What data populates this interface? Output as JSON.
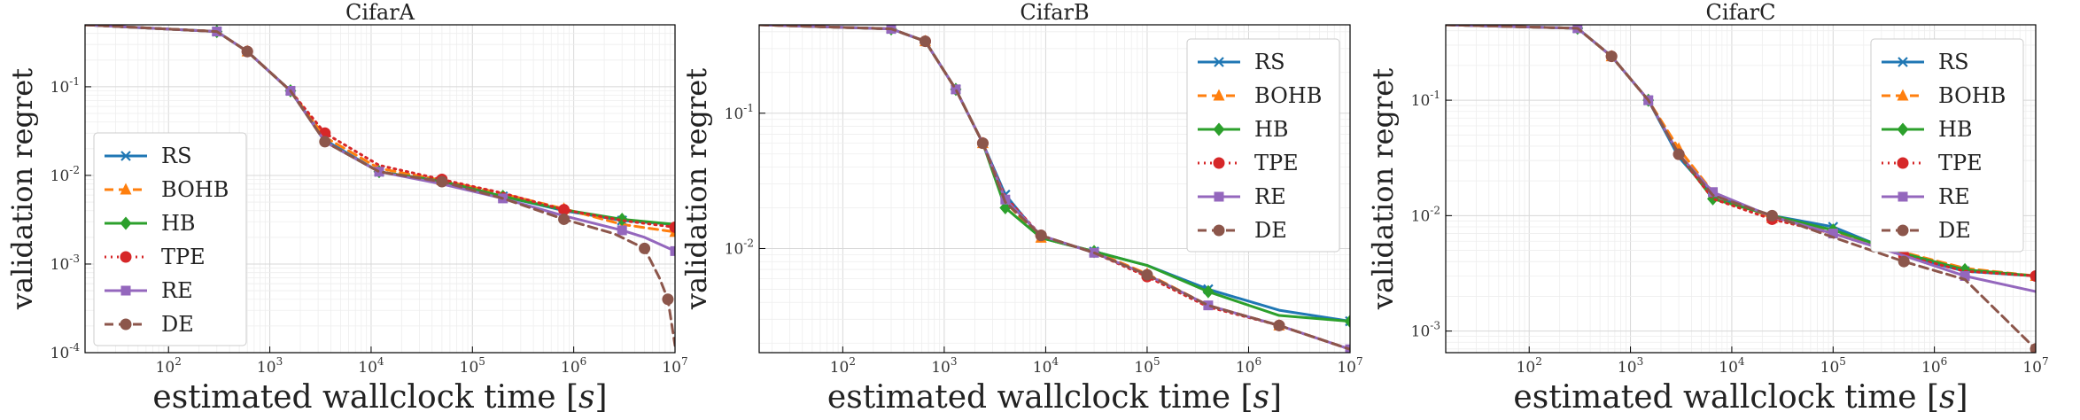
{
  "chart_data": [
    {
      "type": "line",
      "title": "CifarA",
      "xlabel": "estimated wallclock time [s]",
      "ylabel": "validation regret",
      "x_scale": "log",
      "y_scale": "log",
      "xlim": [
        15,
        10000000
      ],
      "ylim": [
        0.0001,
        0.5
      ],
      "x_tick_labels": [
        "10^2",
        "10^3",
        "10^4",
        "10^5",
        "10^6",
        "10^7"
      ],
      "y_tick_labels": [
        "10^-4",
        "10^-3",
        "10^-2",
        "10^-1"
      ],
      "legend_position": "lower-left",
      "grid": true,
      "series": [
        {
          "name": "RS",
          "color": "#1f77b4",
          "dash": "solid",
          "marker": "x",
          "x": [
            15,
            300,
            600,
            1600,
            3500,
            12000,
            50000,
            200000,
            800000,
            3000000,
            10000000
          ],
          "y": [
            0.5,
            0.42,
            0.25,
            0.09,
            0.025,
            0.011,
            0.0085,
            0.0058,
            0.004,
            0.0031,
            0.0028
          ]
        },
        {
          "name": "BOHB",
          "color": "#ff7f0e",
          "dash": "dashed",
          "marker": "^",
          "x": [
            15,
            300,
            600,
            1600,
            3500,
            12000,
            50000,
            200000,
            800000,
            3000000,
            10000000
          ],
          "y": [
            0.5,
            0.42,
            0.25,
            0.09,
            0.027,
            0.012,
            0.0088,
            0.0062,
            0.0042,
            0.0028,
            0.0023
          ]
        },
        {
          "name": "HB",
          "color": "#2ca02c",
          "dash": "solid",
          "marker": "D",
          "x": [
            15,
            300,
            600,
            1600,
            3500,
            12000,
            50000,
            200000,
            800000,
            3000000,
            10000000
          ],
          "y": [
            0.5,
            0.42,
            0.25,
            0.09,
            0.024,
            0.011,
            0.0086,
            0.0058,
            0.0041,
            0.0032,
            0.0028
          ]
        },
        {
          "name": "TPE",
          "color": "#d62728",
          "dash": "dotted",
          "marker": "o",
          "x": [
            15,
            300,
            600,
            1600,
            3500,
            12000,
            50000,
            200000,
            800000,
            3000000,
            10000000
          ],
          "y": [
            0.5,
            0.42,
            0.25,
            0.09,
            0.03,
            0.013,
            0.009,
            0.0063,
            0.0041,
            0.0031,
            0.0026
          ]
        },
        {
          "name": "RE",
          "color": "#9467bd",
          "dash": "solid",
          "marker": "s",
          "x": [
            15,
            300,
            600,
            1600,
            3500,
            12000,
            50000,
            200000,
            800000,
            3000000,
            5000000,
            10000000
          ],
          "y": [
            0.5,
            0.42,
            0.25,
            0.09,
            0.024,
            0.011,
            0.008,
            0.0055,
            0.0035,
            0.0024,
            0.002,
            0.0014
          ]
        },
        {
          "name": "DE",
          "color": "#8c564b",
          "dash": "dashed",
          "marker": "o",
          "x": [
            15,
            300,
            600,
            1600,
            3500,
            12000,
            50000,
            200000,
            800000,
            2500000,
            5000000,
            7000000,
            8500000,
            10000000
          ],
          "y": [
            0.5,
            0.42,
            0.25,
            0.09,
            0.024,
            0.011,
            0.0085,
            0.0055,
            0.0032,
            0.0022,
            0.0015,
            0.0007,
            0.0004,
            0.00012
          ]
        }
      ]
    },
    {
      "type": "line",
      "title": "CifarB",
      "xlabel": "estimated wallclock time [s]",
      "ylabel": "validation regret",
      "x_scale": "log",
      "y_scale": "log",
      "xlim": [
        15,
        10000000
      ],
      "ylim": [
        0.0017,
        0.45
      ],
      "x_tick_labels": [
        "10^2",
        "10^3",
        "10^4",
        "10^5",
        "10^6",
        "10^7"
      ],
      "y_tick_labels": [
        "10^-2",
        "10^-1"
      ],
      "legend_position": "upper-right",
      "grid": true,
      "series": [
        {
          "name": "RS",
          "color": "#1f77b4",
          "dash": "solid",
          "marker": "x",
          "x": [
            15,
            300,
            650,
            1300,
            2400,
            4000,
            9000,
            30000,
            100000,
            400000,
            2000000,
            10000000
          ],
          "y": [
            0.45,
            0.42,
            0.34,
            0.15,
            0.06,
            0.025,
            0.012,
            0.0095,
            0.0075,
            0.005,
            0.0035,
            0.0029
          ]
        },
        {
          "name": "BOHB",
          "color": "#ff7f0e",
          "dash": "dashed",
          "marker": "^",
          "x": [
            15,
            300,
            650,
            1300,
            2400,
            4000,
            9000,
            30000,
            100000,
            400000,
            2000000,
            10000000
          ],
          "y": [
            0.45,
            0.42,
            0.34,
            0.15,
            0.06,
            0.022,
            0.012,
            0.0095,
            0.0065,
            0.0038,
            0.0027,
            0.0018
          ]
        },
        {
          "name": "HB",
          "color": "#2ca02c",
          "dash": "solid",
          "marker": "D",
          "x": [
            15,
            300,
            650,
            1300,
            2400,
            4000,
            9000,
            30000,
            100000,
            400000,
            2000000,
            10000000
          ],
          "y": [
            0.45,
            0.42,
            0.34,
            0.15,
            0.06,
            0.02,
            0.012,
            0.0095,
            0.0075,
            0.0048,
            0.0032,
            0.0029
          ]
        },
        {
          "name": "TPE",
          "color": "#d62728",
          "dash": "dotted",
          "marker": "o",
          "x": [
            15,
            300,
            650,
            1300,
            2400,
            4000,
            9000,
            30000,
            100000,
            400000,
            2000000,
            10000000
          ],
          "y": [
            0.45,
            0.42,
            0.34,
            0.15,
            0.06,
            0.024,
            0.0125,
            0.0093,
            0.0062,
            0.0037,
            0.0027,
            0.0018
          ]
        },
        {
          "name": "RE",
          "color": "#9467bd",
          "dash": "solid",
          "marker": "s",
          "x": [
            15,
            300,
            650,
            1300,
            2400,
            4000,
            9000,
            30000,
            100000,
            400000,
            2000000,
            10000000
          ],
          "y": [
            0.45,
            0.42,
            0.34,
            0.15,
            0.06,
            0.023,
            0.0125,
            0.0093,
            0.0064,
            0.0038,
            0.0027,
            0.0018
          ]
        },
        {
          "name": "DE",
          "color": "#8c564b",
          "dash": "dashed",
          "marker": "o",
          "x": [
            15,
            300,
            650,
            1300,
            2400,
            4000,
            9000,
            30000,
            100000,
            400000,
            2000000,
            10000000
          ],
          "y": [
            0.45,
            0.42,
            0.34,
            0.15,
            0.06,
            0.022,
            0.0125,
            0.0093,
            0.0064,
            0.0038,
            0.0027,
            0.0018
          ]
        }
      ]
    },
    {
      "type": "line",
      "title": "CifarC",
      "xlabel": "estimated wallclock time [s]",
      "ylabel": "validation regret",
      "x_scale": "log",
      "y_scale": "log",
      "xlim": [
        15,
        10000000
      ],
      "ylim": [
        0.00065,
        0.45
      ],
      "x_tick_labels": [
        "10^2",
        "10^3",
        "10^4",
        "10^5",
        "10^6",
        "10^7"
      ],
      "y_tick_labels": [
        "10^-3",
        "10^-2",
        "10^-1"
      ],
      "legend_position": "upper-right",
      "grid": true,
      "series": [
        {
          "name": "RS",
          "color": "#1f77b4",
          "dash": "solid",
          "marker": "x",
          "x": [
            15,
            300,
            650,
            1500,
            3000,
            6500,
            25000,
            100000,
            500000,
            2000000,
            10000000
          ],
          "y": [
            0.45,
            0.42,
            0.24,
            0.1,
            0.032,
            0.015,
            0.01,
            0.008,
            0.0045,
            0.0033,
            0.003
          ]
        },
        {
          "name": "BOHB",
          "color": "#ff7f0e",
          "dash": "dashed",
          "marker": "^",
          "x": [
            15,
            300,
            650,
            1500,
            3000,
            6500,
            25000,
            100000,
            500000,
            2000000,
            10000000
          ],
          "y": [
            0.45,
            0.42,
            0.24,
            0.1,
            0.038,
            0.016,
            0.0095,
            0.0072,
            0.0048,
            0.0035,
            0.003
          ]
        },
        {
          "name": "HB",
          "color": "#2ca02c",
          "dash": "solid",
          "marker": "D",
          "x": [
            15,
            300,
            650,
            1500,
            3000,
            6500,
            25000,
            100000,
            500000,
            2000000,
            10000000
          ],
          "y": [
            0.45,
            0.42,
            0.24,
            0.1,
            0.034,
            0.014,
            0.01,
            0.0075,
            0.0047,
            0.0034,
            0.003
          ]
        },
        {
          "name": "TPE",
          "color": "#d62728",
          "dash": "dotted",
          "marker": "o",
          "x": [
            15,
            300,
            650,
            1500,
            3000,
            6500,
            25000,
            100000,
            500000,
            2000000,
            10000000
          ],
          "y": [
            0.45,
            0.42,
            0.24,
            0.1,
            0.034,
            0.014,
            0.0093,
            0.007,
            0.0045,
            0.0033,
            0.003
          ]
        },
        {
          "name": "RE",
          "color": "#9467bd",
          "dash": "solid",
          "marker": "s",
          "x": [
            15,
            300,
            650,
            1500,
            3000,
            6500,
            25000,
            100000,
            500000,
            2000000,
            10000000
          ],
          "y": [
            0.45,
            0.42,
            0.24,
            0.1,
            0.034,
            0.016,
            0.0098,
            0.007,
            0.0045,
            0.003,
            0.0022
          ]
        },
        {
          "name": "DE",
          "color": "#8c564b",
          "dash": "dashed",
          "marker": "o",
          "x": [
            15,
            300,
            650,
            1500,
            3000,
            6500,
            25000,
            100000,
            500000,
            2000000,
            10000000
          ],
          "y": [
            0.45,
            0.42,
            0.24,
            0.1,
            0.034,
            0.015,
            0.01,
            0.0065,
            0.004,
            0.0028,
            0.0007
          ]
        }
      ]
    }
  ]
}
